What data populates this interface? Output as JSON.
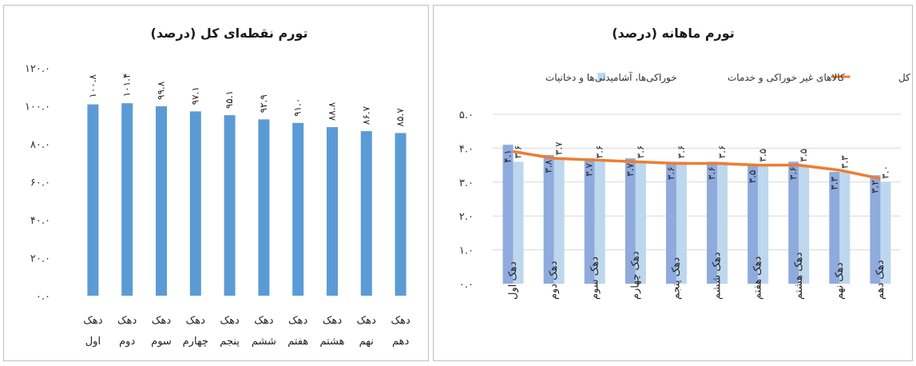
{
  "colors": {
    "left_bar": "#5b9bd5",
    "bar_dark": "#8faadc",
    "bar_light": "#bdd7ee",
    "line": "#ed7d31",
    "grid": "#d9d9d9"
  },
  "chart_data": [
    {
      "type": "bar",
      "title": "تورم نقطه‌ای کل (درصد)",
      "categories": [
        [
          "دهک",
          "اول"
        ],
        [
          "دهک",
          "دوم"
        ],
        [
          "دهک",
          "سوم"
        ],
        [
          "دهک",
          "چهارم"
        ],
        [
          "دهک",
          "پنجم"
        ],
        [
          "دهک",
          "ششم"
        ],
        [
          "دهک",
          "هفتم"
        ],
        [
          "دهک",
          "هشتم"
        ],
        [
          "دهک",
          "نهم"
        ],
        [
          "دهک",
          "دهم"
        ]
      ],
      "values": [
        100.8,
        101.4,
        99.8,
        97.1,
        95.1,
        92.9,
        91.0,
        88.8,
        86.7,
        85.7
      ],
      "value_labels": [
        "۱۰۰.۸",
        "۱۰۱.۴",
        "۹۹.۸",
        "۹۷.۱",
        "۹۵.۱",
        "۹۲.۹",
        "۹۱.۰",
        "۸۸.۸",
        "۸۶.۷",
        "۸۵.۷"
      ],
      "ylim": [
        0,
        120
      ],
      "yticks": [
        0,
        20,
        40,
        60,
        80,
        100,
        120
      ],
      "ytick_labels": [
        "۰.۰",
        "۲۰.۰",
        "۴۰.۰",
        "۶۰.۰",
        "۸۰.۰",
        "۱۰۰.۰",
        "۱۲۰.۰"
      ],
      "grid": false
    },
    {
      "type": "bar",
      "title": "تورم ماهانه (درصد)",
      "categories": [
        "دهک اول",
        "دهک دوم",
        "دهک سوم",
        "دهک چهارم",
        "دهک پنجم",
        "دهک ششم",
        "دهک هفتم",
        "دهک هشتم",
        "دهک نهم",
        "دهک دهم"
      ],
      "series": [
        {
          "name": "خوراکی‌ها، آشامیدنی‌ها و دخانیات",
          "type": "bar",
          "values": [
            4.1,
            3.8,
            3.7,
            3.7,
            3.6,
            3.6,
            3.5,
            3.6,
            3.3,
            3.2
          ],
          "value_labels": [
            "۴.۱",
            "۳.۸",
            "۳.۷",
            "۳.۷",
            "۳.۶",
            "۳.۶",
            "۳.۵",
            "۳.۶",
            "۳.۳",
            "۳.۲"
          ]
        },
        {
          "name": "کالاهای غیر خوراکی و خدمات",
          "type": "bar",
          "values": [
            3.6,
            3.7,
            3.6,
            3.6,
            3.6,
            3.6,
            3.5,
            3.5,
            3.3,
            3.0
          ],
          "value_labels": [
            "۳.۶",
            "۳.۷",
            "۳.۶",
            "۳.۶",
            "۳.۶",
            "۳.۶",
            "۳.۵",
            "۳.۵",
            "۳.۳",
            "۳.۰"
          ]
        },
        {
          "name": "شاخص کل",
          "type": "line",
          "values": [
            3.9,
            3.7,
            3.65,
            3.6,
            3.55,
            3.55,
            3.5,
            3.5,
            3.35,
            3.1
          ]
        }
      ],
      "ylim": [
        0,
        5
      ],
      "yticks": [
        0,
        1,
        2,
        3,
        4,
        5
      ],
      "ytick_labels": [
        "۰.۰",
        "۱.۰",
        "۲.۰",
        "۳.۰",
        "۴.۰",
        "۵.۰"
      ],
      "legend": "top",
      "grid": true
    }
  ]
}
